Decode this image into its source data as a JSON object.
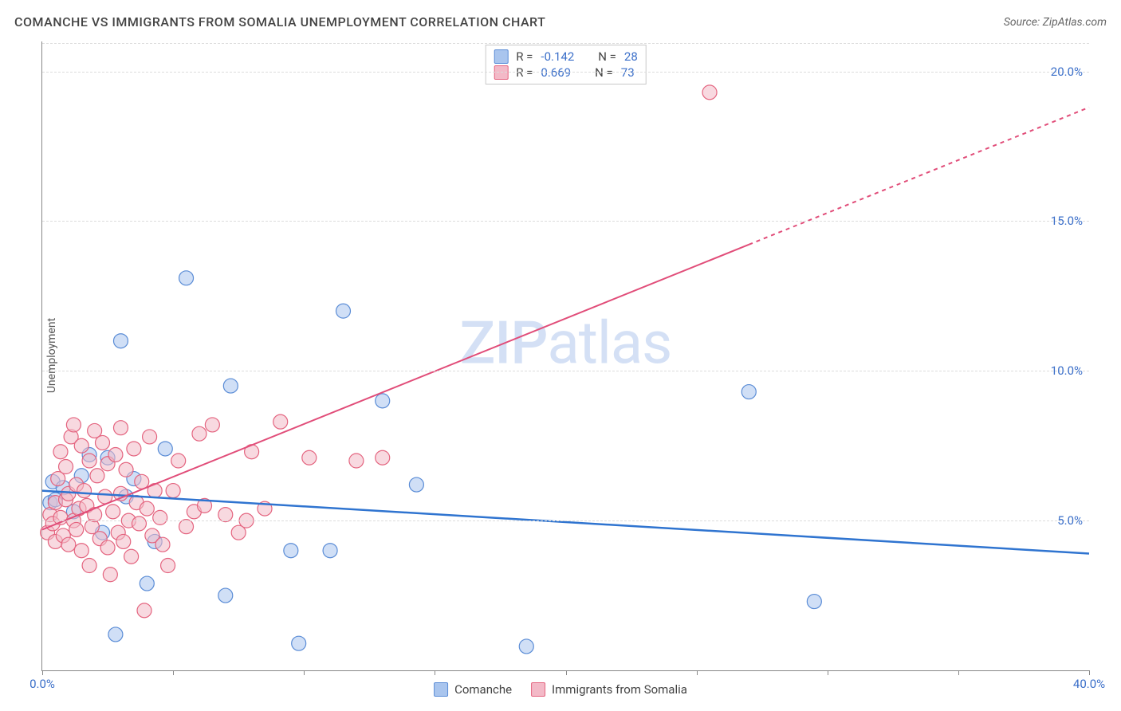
{
  "title": "COMANCHE VS IMMIGRANTS FROM SOMALIA UNEMPLOYMENT CORRELATION CHART",
  "source_label": "Source: ZipAtlas.com",
  "y_axis_label": "Unemployment",
  "watermark_bold": "ZIP",
  "watermark_rest": "atlas",
  "chart": {
    "type": "scatter-with-regression",
    "xlim": [
      0,
      40
    ],
    "ylim": [
      0,
      21
    ],
    "x_ticks": [
      0,
      5,
      10,
      15,
      20,
      25,
      30,
      35,
      40
    ],
    "x_tick_labels": {
      "0": "0.0%",
      "40": "40.0%"
    },
    "y_gridlines": [
      5,
      10,
      15,
      20
    ],
    "y_tick_labels": {
      "5": "5.0%",
      "10": "10.0%",
      "15": "15.0%",
      "20": "20.0%"
    },
    "background_color": "#ffffff",
    "grid_color": "#dcdcdc",
    "marker_radius": 9,
    "marker_opacity": 0.55,
    "series": [
      {
        "id": "comanche",
        "label": "Comanche",
        "color_fill": "#a9c5ee",
        "color_stroke": "#5a8cd6",
        "line_color": "#2f74d0",
        "line_width": 2.5,
        "R": "-0.142",
        "N": "28",
        "regression": {
          "x1": 0,
          "y1": 6.0,
          "x2": 40,
          "y2": 3.9,
          "dash_from_x": null
        },
        "points": [
          [
            0.3,
            5.6
          ],
          [
            0.4,
            6.3
          ],
          [
            0.5,
            5.7
          ],
          [
            0.8,
            6.1
          ],
          [
            1.2,
            5.3
          ],
          [
            1.5,
            6.5
          ],
          [
            1.8,
            7.2
          ],
          [
            2.3,
            4.6
          ],
          [
            2.5,
            7.1
          ],
          [
            2.8,
            1.2
          ],
          [
            3.0,
            11.0
          ],
          [
            3.2,
            5.8
          ],
          [
            3.5,
            6.4
          ],
          [
            4.0,
            2.9
          ],
          [
            4.3,
            4.3
          ],
          [
            4.7,
            7.4
          ],
          [
            5.5,
            13.1
          ],
          [
            7.0,
            2.5
          ],
          [
            7.2,
            9.5
          ],
          [
            9.5,
            4.0
          ],
          [
            9.8,
            0.9
          ],
          [
            11.0,
            4.0
          ],
          [
            11.5,
            12.0
          ],
          [
            13.0,
            9.0
          ],
          [
            14.3,
            6.2
          ],
          [
            18.5,
            0.8
          ],
          [
            27.0,
            9.3
          ],
          [
            29.5,
            2.3
          ]
        ]
      },
      {
        "id": "somalia",
        "label": "Immigrants from Somalia",
        "color_fill": "#f3b9c7",
        "color_stroke": "#e4647f",
        "line_color": "#e14d79",
        "line_width": 2,
        "R": "0.669",
        "N": "73",
        "regression": {
          "x1": 0,
          "y1": 4.7,
          "x2": 40,
          "y2": 18.8,
          "dash_from_x": 27
        },
        "points": [
          [
            0.2,
            4.6
          ],
          [
            0.3,
            5.2
          ],
          [
            0.4,
            4.9
          ],
          [
            0.5,
            5.6
          ],
          [
            0.5,
            4.3
          ],
          [
            0.6,
            6.4
          ],
          [
            0.7,
            5.1
          ],
          [
            0.7,
            7.3
          ],
          [
            0.8,
            4.5
          ],
          [
            0.9,
            5.7
          ],
          [
            0.9,
            6.8
          ],
          [
            1.0,
            4.2
          ],
          [
            1.0,
            5.9
          ],
          [
            1.1,
            7.8
          ],
          [
            1.2,
            5.0
          ],
          [
            1.2,
            8.2
          ],
          [
            1.3,
            4.7
          ],
          [
            1.3,
            6.2
          ],
          [
            1.4,
            5.4
          ],
          [
            1.5,
            7.5
          ],
          [
            1.5,
            4.0
          ],
          [
            1.6,
            6.0
          ],
          [
            1.7,
            5.5
          ],
          [
            1.8,
            7.0
          ],
          [
            1.8,
            3.5
          ],
          [
            1.9,
            4.8
          ],
          [
            2.0,
            8.0
          ],
          [
            2.0,
            5.2
          ],
          [
            2.1,
            6.5
          ],
          [
            2.2,
            4.4
          ],
          [
            2.3,
            7.6
          ],
          [
            2.4,
            5.8
          ],
          [
            2.5,
            4.1
          ],
          [
            2.5,
            6.9
          ],
          [
            2.6,
            3.2
          ],
          [
            2.7,
            5.3
          ],
          [
            2.8,
            7.2
          ],
          [
            2.9,
            4.6
          ],
          [
            3.0,
            5.9
          ],
          [
            3.0,
            8.1
          ],
          [
            3.1,
            4.3
          ],
          [
            3.2,
            6.7
          ],
          [
            3.3,
            5.0
          ],
          [
            3.4,
            3.8
          ],
          [
            3.5,
            7.4
          ],
          [
            3.6,
            5.6
          ],
          [
            3.7,
            4.9
          ],
          [
            3.8,
            6.3
          ],
          [
            3.9,
            2.0
          ],
          [
            4.0,
            5.4
          ],
          [
            4.1,
            7.8
          ],
          [
            4.2,
            4.5
          ],
          [
            4.3,
            6.0
          ],
          [
            4.5,
            5.1
          ],
          [
            4.6,
            4.2
          ],
          [
            4.8,
            3.5
          ],
          [
            5.0,
            6.0
          ],
          [
            5.2,
            7.0
          ],
          [
            5.5,
            4.8
          ],
          [
            5.8,
            5.3
          ],
          [
            6.0,
            7.9
          ],
          [
            6.2,
            5.5
          ],
          [
            6.5,
            8.2
          ],
          [
            7.0,
            5.2
          ],
          [
            7.5,
            4.6
          ],
          [
            7.8,
            5.0
          ],
          [
            8.0,
            7.3
          ],
          [
            8.5,
            5.4
          ],
          [
            9.1,
            8.3
          ],
          [
            10.2,
            7.1
          ],
          [
            12.0,
            7.0
          ],
          [
            13.0,
            7.1
          ],
          [
            25.5,
            19.3
          ]
        ]
      }
    ]
  },
  "legend": {
    "r_label": "R = ",
    "n_label": "N = "
  }
}
